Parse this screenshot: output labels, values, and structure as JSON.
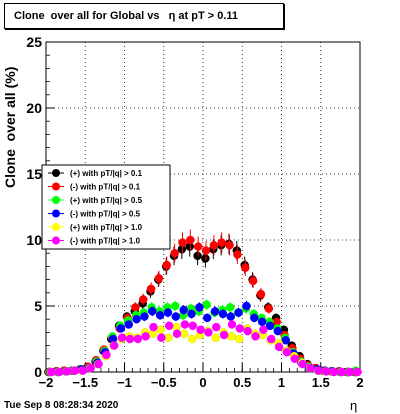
{
  "header": {
    "title": "Clone  over all for Global vs   η at pT > 0.11"
  },
  "footer": {
    "date": "Tue Sep  8 08:28:34 2020"
  },
  "chart_data": {
    "type": "scatter",
    "title": "Clone  over all for Global vs   η at pT > 0.11",
    "xlabel": "η",
    "ylabel": "Clone  over all (%)",
    "xlim": [
      -2,
      2
    ],
    "ylim": [
      0,
      25
    ],
    "xticks": [
      -2,
      -1.5,
      -1,
      -0.5,
      0,
      0.5,
      1,
      1.5,
      2
    ],
    "xtick_labels": [
      "−2",
      "−1.5",
      "−1",
      "−0.5",
      "0",
      "0.5",
      "1",
      "1.5",
      "2"
    ],
    "yticks": [
      0,
      5,
      10,
      15,
      20,
      25
    ],
    "ytick_labels": [
      "0",
      "5",
      "10",
      "15",
      "20",
      "25"
    ],
    "grid": true,
    "legend_position": "left-middle",
    "x": [
      -1.95,
      -1.85,
      -1.75,
      -1.65,
      -1.55,
      -1.45,
      -1.35,
      -1.25,
      -1.15,
      -1.05,
      -0.95,
      -0.85,
      -0.75,
      -0.65,
      -0.55,
      -0.45,
      -0.35,
      -0.25,
      -0.15,
      -0.05,
      0.05,
      0.15,
      0.25,
      0.35,
      0.45,
      0.55,
      0.65,
      0.75,
      0.85,
      0.95,
      1.05,
      1.15,
      1.25,
      1.35,
      1.45,
      1.55,
      1.65,
      1.75,
      1.85,
      1.95
    ],
    "series": [
      {
        "name": "(+) with pT/|q| > 0.1",
        "color": "#000000",
        "values": [
          0,
          0.05,
          0.1,
          0.1,
          0.2,
          0.4,
          0.8,
          1.6,
          2.5,
          3.5,
          4.2,
          4.6,
          5.2,
          6.1,
          7.0,
          8.0,
          8.8,
          9.3,
          9.5,
          8.8,
          8.6,
          9.3,
          9.6,
          9.7,
          9.2,
          8.1,
          7.0,
          5.8,
          4.9,
          4.1,
          3.2,
          2.0,
          1.2,
          0.6,
          0.3,
          0.1,
          0.05,
          0.05,
          0,
          0
        ]
      },
      {
        "name": "(-) with pT/|q| > 0.1",
        "color": "#ff0000",
        "values": [
          0,
          0.05,
          0.1,
          0.1,
          0.2,
          0.4,
          0.9,
          1.7,
          2.6,
          3.3,
          4.1,
          4.9,
          5.5,
          6.3,
          7.1,
          8.1,
          9.0,
          9.8,
          10.0,
          9.5,
          9.2,
          9.6,
          9.8,
          9.6,
          8.9,
          7.9,
          6.9,
          5.9,
          4.8,
          3.8,
          2.8,
          1.8,
          1.0,
          0.5,
          0.3,
          0.1,
          0.05,
          0.05,
          0,
          0
        ]
      },
      {
        "name": "(+) with pT/|q| > 0.5",
        "color": "#00ff00",
        "values": [
          0,
          0,
          0.05,
          0.1,
          0.2,
          0.3,
          0.8,
          1.6,
          2.7,
          3.5,
          3.9,
          4.3,
          4.5,
          4.9,
          4.6,
          4.9,
          5.0,
          4.3,
          4.8,
          4.6,
          5.1,
          4.5,
          4.7,
          4.9,
          4.5,
          4.8,
          4.4,
          4.1,
          3.8,
          3.3,
          2.6,
          1.5,
          0.8,
          0.4,
          0.2,
          0.1,
          0.05,
          0,
          0,
          0.1
        ]
      },
      {
        "name": "(-) with pT/|q| > 0.5",
        "color": "#0000ff",
        "values": [
          0,
          0,
          0.05,
          0.1,
          0.2,
          0.3,
          0.7,
          1.5,
          2.5,
          3.3,
          3.6,
          4.0,
          4.2,
          4.6,
          4.3,
          4.5,
          4.2,
          4.7,
          4.4,
          4.9,
          4.1,
          4.6,
          4.4,
          4.2,
          4.5,
          5.0,
          4.1,
          3.8,
          3.5,
          3.1,
          2.4,
          1.4,
          0.7,
          0.3,
          0.2,
          0.1,
          0.05,
          0,
          0,
          0
        ]
      },
      {
        "name": "(+) with pT/|q| > 1.0",
        "color": "#ffff00",
        "values": [
          0,
          0,
          0.05,
          0.1,
          0.1,
          0.3,
          0.6,
          1.2,
          2.0,
          2.5,
          2.7,
          2.6,
          3.0,
          2.9,
          3.2,
          2.6,
          3.4,
          2.9,
          2.5,
          2.8,
          3.1,
          2.6,
          3.0,
          2.7,
          2.5,
          3.3,
          2.9,
          2.8,
          2.4,
          2.2,
          1.6,
          1.2,
          0.7,
          0.3,
          0.1,
          0.05,
          0,
          0,
          0,
          0
        ]
      },
      {
        "name": "(-) with pT/|q| > 1.0",
        "color": "#ff00ff",
        "values": [
          0,
          0,
          0.05,
          0.1,
          0.1,
          0.3,
          0.6,
          1.3,
          2.0,
          2.6,
          2.5,
          2.5,
          2.7,
          3.4,
          2.6,
          3.5,
          2.9,
          3.6,
          3.5,
          3.2,
          3.0,
          3.4,
          2.8,
          3.6,
          3.3,
          3.1,
          2.7,
          3.2,
          2.5,
          1.9,
          1.5,
          1.0,
          0.6,
          0.3,
          0.1,
          0.05,
          0,
          0,
          0,
          0
        ]
      }
    ]
  }
}
